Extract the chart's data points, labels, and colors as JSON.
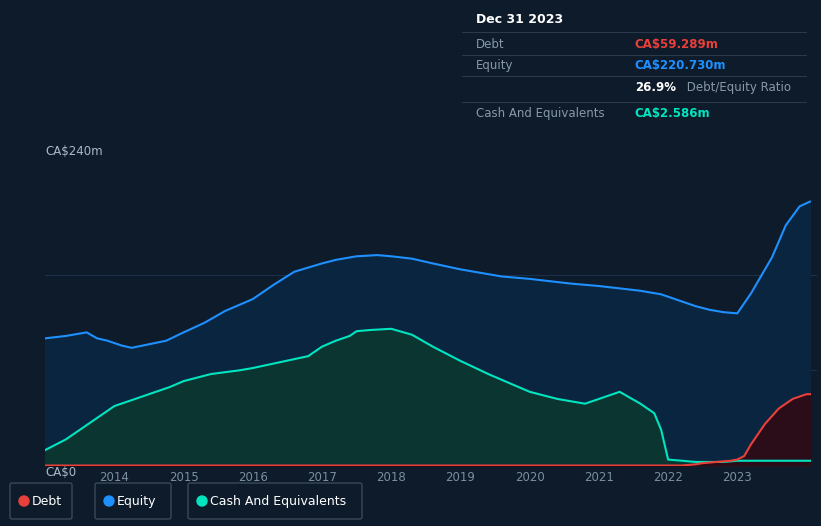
{
  "bg_color": "#0d1b2a",
  "plot_bg_color": "#0d1b2a",
  "grid_color": "#1e3050",
  "equity_color": "#1e90ff",
  "debt_color": "#e8403a",
  "cash_color": "#00e5c0",
  "equity_fill": "#0a2540",
  "cash_fill": "#0a3530",
  "debt_fill": "#2a0d18",
  "y_max": 240,
  "tooltip_date": "Dec 31 2023",
  "tooltip_debt_label": "Debt",
  "tooltip_debt_value": "CA$59.289m",
  "tooltip_equity_label": "Equity",
  "tooltip_equity_value": "CA$220.730m",
  "tooltip_ratio_bold": "26.9%",
  "tooltip_ratio_text": " Debt/Equity Ratio",
  "tooltip_cash_label": "Cash And Equivalents",
  "tooltip_cash_value": "CA$2.586m",
  "legend_items": [
    "Debt",
    "Equity",
    "Cash And Equivalents"
  ],
  "legend_colors": [
    "#e8403a",
    "#1e90ff",
    "#00e5c0"
  ],
  "equity_x": [
    2013.0,
    2013.3,
    2013.6,
    2013.75,
    2013.9,
    2014.0,
    2014.1,
    2014.25,
    2014.5,
    2014.75,
    2015.0,
    2015.3,
    2015.6,
    2016.0,
    2016.3,
    2016.6,
    2017.0,
    2017.2,
    2017.5,
    2017.8,
    2018.0,
    2018.3,
    2018.6,
    2019.0,
    2019.3,
    2019.6,
    2020.0,
    2020.3,
    2020.6,
    2021.0,
    2021.3,
    2021.6,
    2021.9,
    2022.0,
    2022.2,
    2022.4,
    2022.6,
    2022.8,
    2023.0,
    2023.2,
    2023.5,
    2023.7,
    2023.9,
    2024.05
  ],
  "equity_y": [
    107,
    109,
    112,
    107,
    105,
    103,
    101,
    99,
    102,
    105,
    112,
    120,
    130,
    140,
    152,
    163,
    170,
    173,
    176,
    177,
    176,
    174,
    170,
    165,
    162,
    159,
    157,
    155,
    153,
    151,
    149,
    147,
    144,
    142,
    138,
    134,
    131,
    129,
    128,
    145,
    175,
    202,
    218,
    222
  ],
  "cash_x": [
    2013.0,
    2013.3,
    2013.6,
    2014.0,
    2014.4,
    2014.8,
    2015.0,
    2015.4,
    2015.8,
    2016.0,
    2016.4,
    2016.8,
    2017.0,
    2017.2,
    2017.4,
    2017.5,
    2017.7,
    2018.0,
    2018.3,
    2018.6,
    2019.0,
    2019.4,
    2019.8,
    2020.0,
    2020.4,
    2020.8,
    2021.0,
    2021.3,
    2021.6,
    2021.8,
    2021.9,
    2022.0,
    2022.2,
    2022.4,
    2022.6,
    2022.8,
    2023.0,
    2023.3,
    2023.6,
    2023.9,
    2024.05
  ],
  "cash_y": [
    13,
    22,
    34,
    50,
    58,
    66,
    71,
    77,
    80,
    82,
    87,
    92,
    100,
    105,
    109,
    113,
    114,
    115,
    110,
    100,
    88,
    77,
    67,
    62,
    56,
    52,
    56,
    62,
    52,
    44,
    30,
    5,
    4,
    3,
    3,
    3,
    4,
    4,
    4,
    4,
    4
  ],
  "debt_x": [
    2013.0,
    2021.9,
    2022.0,
    2022.2,
    2022.4,
    2022.5,
    2022.7,
    2022.9,
    2023.0,
    2023.1,
    2023.2,
    2023.4,
    2023.6,
    2023.8,
    2024.0,
    2024.05
  ],
  "debt_y": [
    0,
    0,
    0,
    0,
    1,
    2,
    3,
    4,
    5,
    8,
    18,
    35,
    48,
    56,
    60,
    60
  ]
}
